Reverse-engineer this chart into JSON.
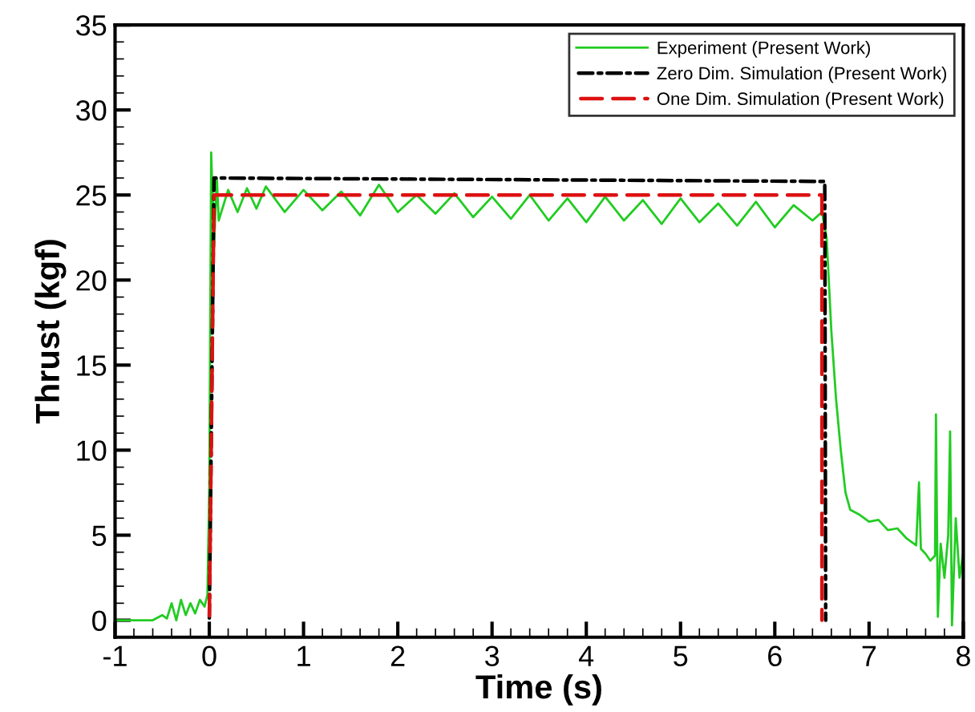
{
  "chart_data": {
    "type": "line",
    "xlabel": "Time (s)",
    "ylabel": "Thrust (kgf)",
    "xlim": [
      -1,
      8
    ],
    "xticks": [
      -1,
      0,
      1,
      2,
      3,
      4,
      5,
      6,
      7,
      8
    ],
    "ylim": [
      -1,
      35
    ],
    "yticks": [
      0,
      5,
      10,
      15,
      20,
      25,
      30,
      35
    ],
    "grid": false,
    "legend": "top right",
    "series": [
      {
        "name": "Experiment (Present Work)",
        "color": "#22cc22",
        "line_style": "solid",
        "x": [
          -1,
          -0.6,
          -0.5,
          -0.45,
          -0.4,
          -0.35,
          -0.3,
          -0.25,
          -0.2,
          -0.15,
          -0.1,
          -0.05,
          -0.02,
          0,
          0.02,
          0.05,
          0.08,
          0.1,
          0.2,
          0.3,
          0.4,
          0.5,
          0.6,
          0.8,
          1.0,
          1.2,
          1.4,
          1.6,
          1.8,
          2.0,
          2.2,
          2.4,
          2.6,
          2.8,
          3.0,
          3.2,
          3.4,
          3.6,
          3.8,
          4.0,
          4.2,
          4.4,
          4.6,
          4.8,
          5.0,
          5.2,
          5.4,
          5.6,
          5.8,
          6.0,
          6.2,
          6.4,
          6.5,
          6.55,
          6.6,
          6.65,
          6.7,
          6.75,
          6.8,
          6.9,
          7.0,
          7.1,
          7.2,
          7.3,
          7.4,
          7.5,
          7.53,
          7.55,
          7.6,
          7.65,
          7.7,
          7.71,
          7.73,
          7.76,
          7.8,
          7.84,
          7.86,
          7.88,
          7.92,
          7.96,
          8.0
        ],
        "values": [
          0,
          0,
          0.3,
          0.1,
          1.0,
          0.0,
          1.2,
          0.3,
          1.0,
          0.4,
          1.2,
          0.8,
          1.5,
          8,
          27.5,
          22,
          26,
          23.5,
          25.3,
          24,
          25.4,
          24.2,
          25.5,
          24,
          25.3,
          24.1,
          25.2,
          23.8,
          25.6,
          24,
          25,
          23.9,
          25.1,
          23.7,
          24.9,
          23.6,
          25,
          23.5,
          24.8,
          23.4,
          24.9,
          23.5,
          24.7,
          23.3,
          24.8,
          23.4,
          24.5,
          23.2,
          24.6,
          23.1,
          24.4,
          23.5,
          24,
          22.5,
          17,
          13,
          10,
          7.5,
          6.5,
          6.2,
          5.8,
          5.9,
          5.3,
          5.4,
          4.8,
          4.4,
          8.1,
          4.2,
          3.9,
          3.5,
          3.8,
          12.1,
          0.2,
          4.5,
          2.5,
          5,
          11.1,
          -0.3,
          6,
          2.5,
          4
        ]
      },
      {
        "name": "Zero Dim. Simulation (Present Work)",
        "color": "#000000",
        "line_style": "dashdot",
        "x": [
          0,
          0.05,
          6.53,
          6.54
        ],
        "values": [
          0,
          26,
          25.8,
          0
        ]
      },
      {
        "name": "One Dim. Simulation (Present Work)",
        "color": "#dd1111",
        "line_style": "dashed",
        "x": [
          0,
          0.05,
          6.5,
          6.5
        ],
        "values": [
          0,
          25,
          25,
          0
        ]
      }
    ]
  }
}
